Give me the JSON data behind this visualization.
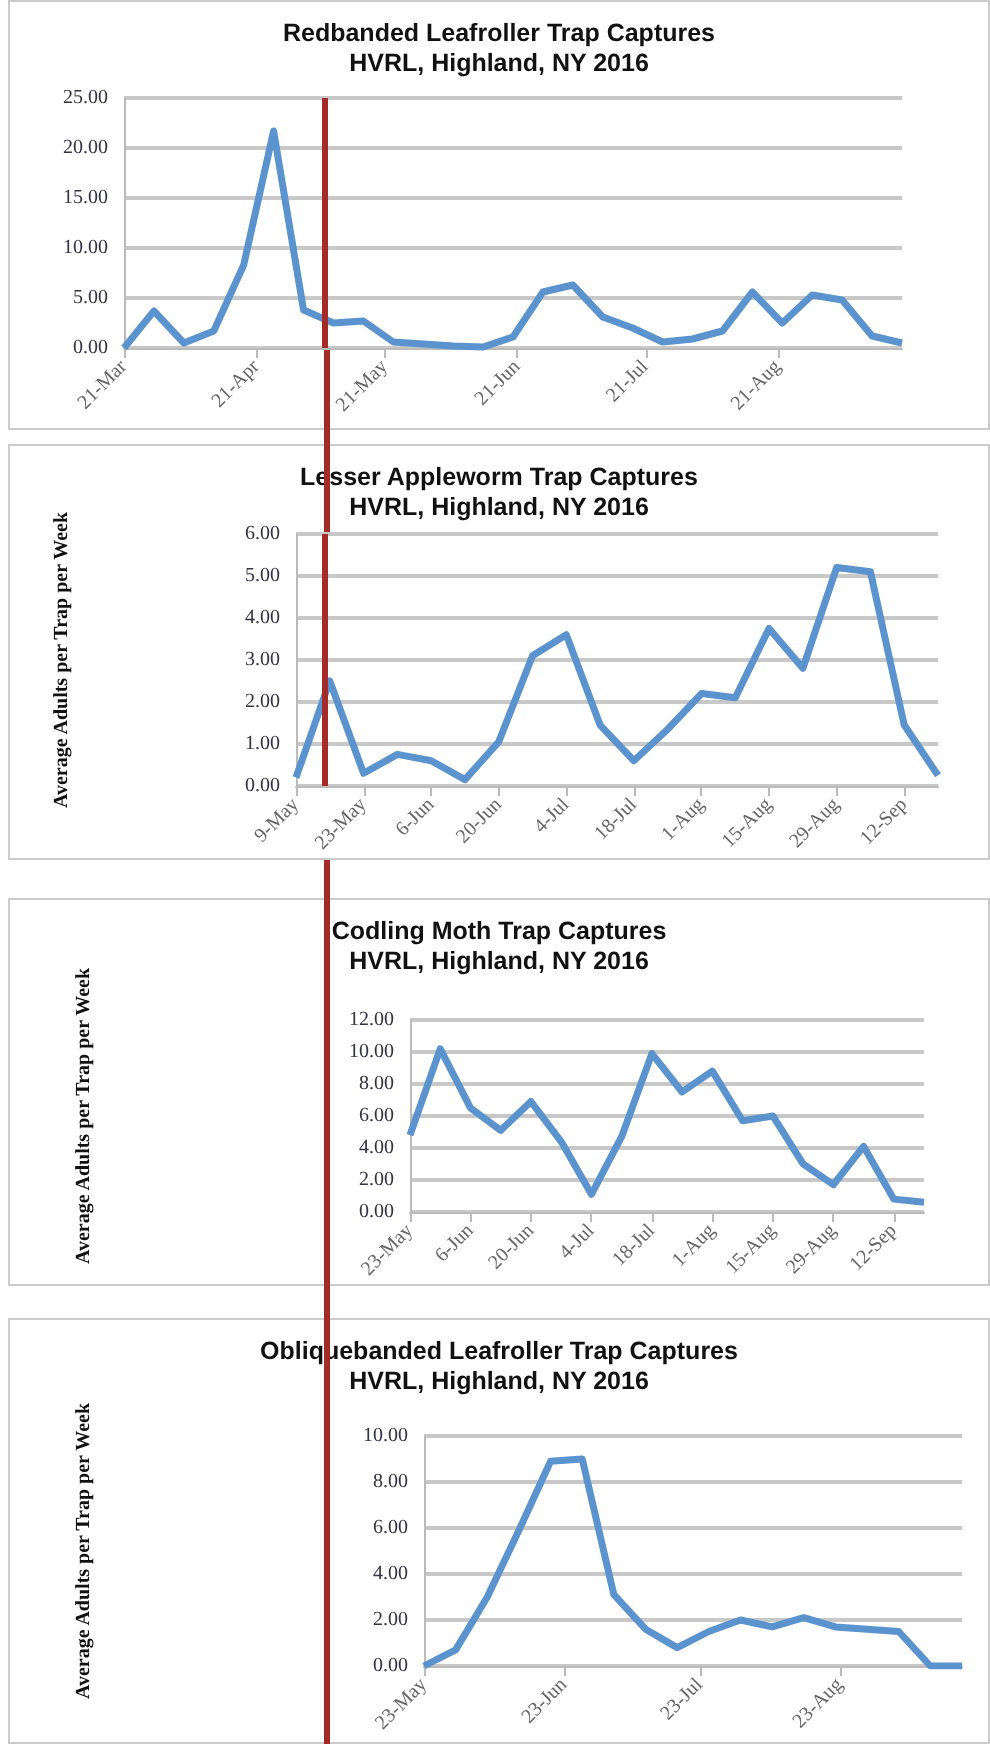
{
  "chart_data": [
    {
      "type": "line",
      "title": "Redbanded Leafroller Trap Captures",
      "subtitle": "HVRL, Highland, NY 2016",
      "x": [
        "2016-03-21",
        "2016-03-28",
        "2016-04-04",
        "2016-04-11",
        "2016-04-18",
        "2016-04-25",
        "2016-05-02",
        "2016-05-09",
        "2016-05-16",
        "2016-05-23",
        "2016-05-30",
        "2016-06-06",
        "2016-06-13",
        "2016-06-20",
        "2016-06-27",
        "2016-07-04",
        "2016-07-11",
        "2016-07-18",
        "2016-07-25",
        "2016-08-01",
        "2016-08-08",
        "2016-08-15",
        "2016-08-22",
        "2016-08-29",
        "2016-09-05",
        "2016-09-12",
        "2016-09-19"
      ],
      "series": [
        {
          "color": "#5b93cf",
          "values": [
            0,
            3.7,
            0.5,
            1.7,
            8.3,
            21.7,
            3.8,
            2.5,
            2.7,
            0.6,
            0.4,
            0.2,
            0.1,
            1.1,
            5.6,
            6.3,
            3.1,
            2.0,
            0.6,
            0.9,
            1.7,
            5.6,
            2.5,
            5.3,
            4.8,
            1.2,
            0.5
          ]
        }
      ],
      "xlim": [
        "2016-03-21",
        "2016-09-19"
      ],
      "xticks": [
        {
          "value": "2016-03-21",
          "label": "21-Mar"
        },
        {
          "value": "2016-04-21",
          "label": "21-Apr"
        },
        {
          "value": "2016-05-21",
          "label": "21-May"
        },
        {
          "value": "2016-06-21",
          "label": "21-Jun"
        },
        {
          "value": "2016-07-21",
          "label": "21-Jul"
        },
        {
          "value": "2016-08-21",
          "label": "21-Aug"
        }
      ],
      "ylim": [
        0,
        25
      ],
      "yticks": [
        {
          "value": 0,
          "label": "0.00"
        },
        {
          "value": 5,
          "label": "5.00"
        },
        {
          "value": 10,
          "label": "10.00"
        },
        {
          "value": 15,
          "label": "15.00"
        },
        {
          "value": 20,
          "label": "20.00"
        },
        {
          "value": 25,
          "label": "25.00"
        }
      ],
      "ref_lines": [
        {
          "axis": "x",
          "value": "2016-05-07",
          "color": "#a52a2a"
        }
      ],
      "grid": "y",
      "marker": "none",
      "line_style": "solid"
    },
    {
      "type": "line",
      "title": "Lesser Appleworm Trap Captures",
      "subtitle": "HVRL, Highland, NY 2016",
      "ylabel": "Average Adults per Trap per Week",
      "x": [
        "2016-05-09",
        "2016-05-16",
        "2016-05-23",
        "2016-05-30",
        "2016-06-06",
        "2016-06-13",
        "2016-06-20",
        "2016-06-27",
        "2016-07-04",
        "2016-07-11",
        "2016-07-18",
        "2016-07-25",
        "2016-08-01",
        "2016-08-08",
        "2016-08-15",
        "2016-08-22",
        "2016-08-29",
        "2016-09-05",
        "2016-09-12",
        "2016-09-19"
      ],
      "series": [
        {
          "color": "#5b93cf",
          "values": [
            0.2,
            2.5,
            0.3,
            0.75,
            0.6,
            0.15,
            1.05,
            3.1,
            3.6,
            1.45,
            0.6,
            1.35,
            2.2,
            2.1,
            3.75,
            2.8,
            5.2,
            5.1,
            1.45,
            0.25
          ]
        }
      ],
      "xlim": [
        "2016-05-09",
        "2016-09-19"
      ],
      "xticks": [
        {
          "value": "2016-05-09",
          "label": "9-May"
        },
        {
          "value": "2016-05-23",
          "label": "23-May"
        },
        {
          "value": "2016-06-06",
          "label": "6-Jun"
        },
        {
          "value": "2016-06-20",
          "label": "20-Jun"
        },
        {
          "value": "2016-07-04",
          "label": "4-Jul"
        },
        {
          "value": "2016-07-18",
          "label": "18-Jul"
        },
        {
          "value": "2016-08-01",
          "label": "1-Aug"
        },
        {
          "value": "2016-08-15",
          "label": "15-Aug"
        },
        {
          "value": "2016-08-29",
          "label": "29-Aug"
        },
        {
          "value": "2016-09-12",
          "label": "12-Sep"
        }
      ],
      "ylim": [
        0,
        6
      ],
      "yticks": [
        {
          "value": 0,
          "label": "0.00"
        },
        {
          "value": 1,
          "label": "1.00"
        },
        {
          "value": 2,
          "label": "2.00"
        },
        {
          "value": 3,
          "label": "3.00"
        },
        {
          "value": 4,
          "label": "4.00"
        },
        {
          "value": 5,
          "label": "5.00"
        },
        {
          "value": 6,
          "label": "6.00"
        }
      ],
      "ref_lines": [
        {
          "axis": "x",
          "value": "2016-05-15",
          "color": "#a52a2a"
        }
      ],
      "grid": "y",
      "marker": "none",
      "line_style": "solid"
    },
    {
      "type": "line",
      "title": "Codling Moth Trap Captures",
      "subtitle": "HVRL, Highland, NY 2016",
      "ylabel": "Average Adults per Trap per Week",
      "x": [
        "2016-05-23",
        "2016-05-30",
        "2016-06-06",
        "2016-06-13",
        "2016-06-20",
        "2016-06-27",
        "2016-07-04",
        "2016-07-11",
        "2016-07-18",
        "2016-07-25",
        "2016-08-01",
        "2016-08-08",
        "2016-08-15",
        "2016-08-22",
        "2016-08-29",
        "2016-09-05",
        "2016-09-12",
        "2016-09-19"
      ],
      "series": [
        {
          "color": "#5b93cf",
          "values": [
            4.8,
            10.2,
            6.5,
            5.1,
            6.9,
            4.4,
            1.1,
            4.7,
            9.9,
            7.5,
            8.8,
            5.7,
            6.0,
            3.0,
            1.7,
            4.1,
            0.8,
            0.6
          ]
        }
      ],
      "xlim": [
        "2016-05-23",
        "2016-09-19"
      ],
      "xticks": [
        {
          "value": "2016-05-23",
          "label": "23-May"
        },
        {
          "value": "2016-06-06",
          "label": "6-Jun"
        },
        {
          "value": "2016-06-20",
          "label": "20-Jun"
        },
        {
          "value": "2016-07-04",
          "label": "4-Jul"
        },
        {
          "value": "2016-07-18",
          "label": "18-Jul"
        },
        {
          "value": "2016-08-01",
          "label": "1-Aug"
        },
        {
          "value": "2016-08-15",
          "label": "15-Aug"
        },
        {
          "value": "2016-08-29",
          "label": "29-Aug"
        },
        {
          "value": "2016-09-12",
          "label": "12-Sep"
        }
      ],
      "ylim": [
        0,
        12
      ],
      "yticks": [
        {
          "value": 0,
          "label": "0.00"
        },
        {
          "value": 2,
          "label": "2.00"
        },
        {
          "value": 4,
          "label": "4.00"
        },
        {
          "value": 6,
          "label": "6.00"
        },
        {
          "value": 8,
          "label": "8.00"
        },
        {
          "value": 10,
          "label": "10.00"
        },
        {
          "value": 12,
          "label": "12.00"
        }
      ],
      "grid": "y",
      "marker": "none",
      "line_style": "solid"
    },
    {
      "type": "line",
      "title": "Obliquebanded Leafroller Trap Captures",
      "subtitle": "HVRL, Highland, NY 2016",
      "ylabel": "Average Adults per Trap per Week",
      "x": [
        "2016-05-23",
        "2016-05-30",
        "2016-06-06",
        "2016-06-13",
        "2016-06-20",
        "2016-06-27",
        "2016-07-04",
        "2016-07-11",
        "2016-07-18",
        "2016-07-25",
        "2016-08-01",
        "2016-08-08",
        "2016-08-15",
        "2016-08-22",
        "2016-08-29",
        "2016-09-05",
        "2016-09-12",
        "2016-09-19"
      ],
      "series": [
        {
          "color": "#5b93cf",
          "values": [
            0,
            0.7,
            3.0,
            5.9,
            8.9,
            9.0,
            3.1,
            1.6,
            0.8,
            1.5,
            2.0,
            1.7,
            2.1,
            1.7,
            1.6,
            1.5,
            0,
            0
          ]
        }
      ],
      "xlim": [
        "2016-05-23",
        "2016-09-19"
      ],
      "xticks": [
        {
          "value": "2016-05-23",
          "label": "23-May"
        },
        {
          "value": "2016-06-23",
          "label": "23-Jun"
        },
        {
          "value": "2016-07-23",
          "label": "23-Jul"
        },
        {
          "value": "2016-08-23",
          "label": "23-Aug"
        }
      ],
      "ylim": [
        0,
        10
      ],
      "yticks": [
        {
          "value": 0,
          "label": "0.00"
        },
        {
          "value": 2,
          "label": "2.00"
        },
        {
          "value": 4,
          "label": "4.00"
        },
        {
          "value": 6,
          "label": "6.00"
        },
        {
          "value": 8,
          "label": "8.00"
        },
        {
          "value": 10,
          "label": "10.00"
        }
      ],
      "grid": "y",
      "marker": "none",
      "line_style": "solid"
    }
  ]
}
